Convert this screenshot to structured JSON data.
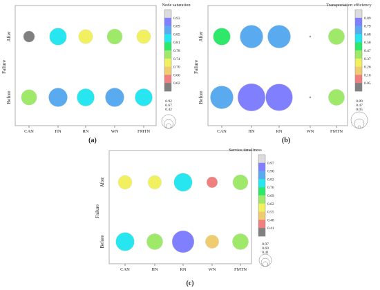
{
  "panels": [
    {
      "id": "a",
      "caption": "(a)",
      "ylabel": "Failure",
      "rows": [
        "After",
        "Before"
      ],
      "categories": [
        "CAN",
        "HN",
        "RN",
        "WN",
        "FMTN"
      ],
      "colorbar": {
        "title": "Node saturation",
        "ticks": [
          "0.93",
          "0.89",
          "0.85",
          "0.81",
          "0.78",
          "0.74",
          "0.70",
          "0.66",
          "0.62"
        ],
        "colors": [
          "#dcdcdc",
          "#8080ff",
          "#5aaaf0",
          "#27e6f0",
          "#2ee86a",
          "#9ee86a",
          "#f0f060",
          "#f0cc70",
          "#f08080",
          "#808080"
        ]
      },
      "size_legend": [
        "0.92",
        "0.67",
        "0.42"
      ]
    },
    {
      "id": "b",
      "caption": "(b)",
      "ylabel": "Failure",
      "rows": [
        "After",
        "Before"
      ],
      "categories": [
        "CAN",
        "HN",
        "RN",
        "WN",
        "FMTN"
      ],
      "colorbar": {
        "title": "Transportation efficiency",
        "ticks": [
          "0.89",
          "0.79",
          "0.68",
          "0.58",
          "0.47",
          "0.37",
          "0.26",
          "0.16",
          "0.05"
        ],
        "colors": [
          "#dcdcdc",
          "#8080ff",
          "#5aaaf0",
          "#27e6f0",
          "#2ee86a",
          "#9ee86a",
          "#f0f060",
          "#f0cc70",
          "#f08080",
          "#808080"
        ]
      },
      "size_legend": [
        "0.89",
        "0.47",
        "0.05"
      ]
    },
    {
      "id": "c",
      "caption": "(c)",
      "ylabel": "Failure",
      "rows": [
        "After",
        "Before"
      ],
      "categories": [
        "CAN",
        "HN",
        "RN",
        "WN",
        "FMTN"
      ],
      "colorbar": {
        "title": "Service timeliness",
        "ticks": [
          "0.97",
          "0.90",
          "0.83",
          "0.76",
          "0.69",
          "0.62",
          "0.55",
          "0.48",
          "0.41"
        ],
        "colors": [
          "#dcdcdc",
          "#8080ff",
          "#5aaaf0",
          "#27e6f0",
          "#2ee86a",
          "#9ee86a",
          "#f0f060",
          "#f0cc70",
          "#f08080",
          "#808080"
        ]
      },
      "size_legend": [
        "0.97",
        "0.69",
        "0.41"
      ]
    }
  ],
  "chart_data": [
    {
      "type": "scatter",
      "title": "Node saturation",
      "ylabel": "Failure",
      "x": [
        "CAN",
        "HN",
        "RN",
        "WN",
        "FMTN"
      ],
      "series": [
        {
          "name": "After",
          "values": [
            0.63,
            0.85,
            0.74,
            0.78,
            0.73
          ]
        },
        {
          "name": "Before",
          "values": [
            0.79,
            0.91,
            0.86,
            0.91,
            0.86
          ]
        }
      ]
    },
    {
      "type": "scatter",
      "title": "Transportation efficiency",
      "ylabel": "Failure",
      "x": [
        "CAN",
        "HN",
        "RN",
        "WN",
        "FMTN"
      ],
      "series": [
        {
          "name": "After",
          "values": [
            0.55,
            0.74,
            0.74,
            0.05,
            0.52
          ]
        },
        {
          "name": "Before",
          "values": [
            0.74,
            0.89,
            0.87,
            0.05,
            0.52
          ]
        }
      ]
    },
    {
      "type": "scatter",
      "title": "Service timeliness",
      "ylabel": "Failure",
      "x": [
        "CAN",
        "HN",
        "RN",
        "WN",
        "FMTN"
      ],
      "series": [
        {
          "name": "After",
          "values": [
            0.6,
            0.59,
            0.8,
            0.47,
            0.66
          ]
        },
        {
          "name": "Before",
          "values": [
            0.81,
            0.7,
            0.97,
            0.58,
            0.7
          ]
        }
      ]
    }
  ]
}
